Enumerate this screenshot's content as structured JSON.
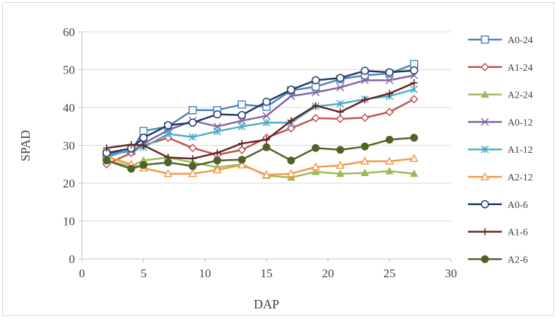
{
  "chart_data": {
    "type": "line",
    "xlabel": "DAP",
    "ylabel": "SPAD",
    "xlim": [
      0,
      30
    ],
    "ylim": [
      0,
      60
    ],
    "x_ticks": [
      0,
      5,
      10,
      15,
      20,
      25,
      30
    ],
    "y_ticks": [
      0,
      10,
      20,
      30,
      40,
      50,
      60
    ],
    "grid": "horizontal",
    "legend_position": "right",
    "x": [
      2,
      4,
      5,
      7,
      9,
      11,
      13,
      15,
      17,
      19,
      21,
      23,
      25,
      27
    ],
    "series": [
      {
        "name": "A0-24",
        "color": "#4F81BD",
        "marker": "square-open",
        "values": [
          27.5,
          28.5,
          33.8,
          35.0,
          39.3,
          39.3,
          40.8,
          40.2,
          44.5,
          45.5,
          47.5,
          48.5,
          49.0,
          51.5
        ]
      },
      {
        "name": "A1-24",
        "color": "#C0504D",
        "marker": "diamond-open",
        "values": [
          25.0,
          28.0,
          30.0,
          32.0,
          29.3,
          27.5,
          28.8,
          32.0,
          34.5,
          37.2,
          37.0,
          37.3,
          38.8,
          42.2
        ]
      },
      {
        "name": "A2-24",
        "color": "#9BBB59",
        "marker": "triangle",
        "values": [
          26.0,
          24.5,
          26.0,
          26.8,
          25.5,
          24.2,
          25.0,
          22.0,
          21.5,
          23.0,
          22.5,
          22.7,
          23.2,
          22.5
        ]
      },
      {
        "name": "A0-12",
        "color": "#8064A2",
        "marker": "x",
        "values": [
          28.0,
          28.5,
          30.5,
          34.0,
          36.5,
          35.0,
          36.5,
          37.8,
          43.0,
          44.0,
          45.3,
          47.2,
          47.2,
          48.5
        ]
      },
      {
        "name": "A1-12",
        "color": "#4BACC6",
        "marker": "star",
        "values": [
          26.8,
          29.0,
          29.5,
          33.0,
          32.2,
          33.7,
          35.0,
          36.0,
          36.0,
          40.3,
          41.0,
          42.2,
          43.0,
          44.8
        ]
      },
      {
        "name": "A2-12",
        "color": "#F79646",
        "marker": "triangle-open",
        "values": [
          27.0,
          25.0,
          24.0,
          22.5,
          22.5,
          23.5,
          24.8,
          22.2,
          22.5,
          24.3,
          24.7,
          25.8,
          25.8,
          26.5
        ]
      },
      {
        "name": "A0-6",
        "color": "#1F3864",
        "marker": "circle-open",
        "values": [
          28.0,
          29.2,
          32.0,
          35.3,
          36.0,
          38.2,
          38.0,
          41.5,
          44.7,
          47.2,
          47.8,
          49.7,
          49.3,
          49.8
        ]
      },
      {
        "name": "A1-6",
        "color": "#632523",
        "marker": "plus",
        "values": [
          29.3,
          30.2,
          30.0,
          26.8,
          26.5,
          28.0,
          30.5,
          31.5,
          36.5,
          40.5,
          38.8,
          42.0,
          43.7,
          46.5
        ]
      },
      {
        "name": "A2-6",
        "color": "#4F6228",
        "marker": "circle",
        "values": [
          26.0,
          23.8,
          24.8,
          25.5,
          24.5,
          26.0,
          26.2,
          29.5,
          26.0,
          29.3,
          28.8,
          29.7,
          31.5,
          32.0
        ]
      }
    ]
  }
}
